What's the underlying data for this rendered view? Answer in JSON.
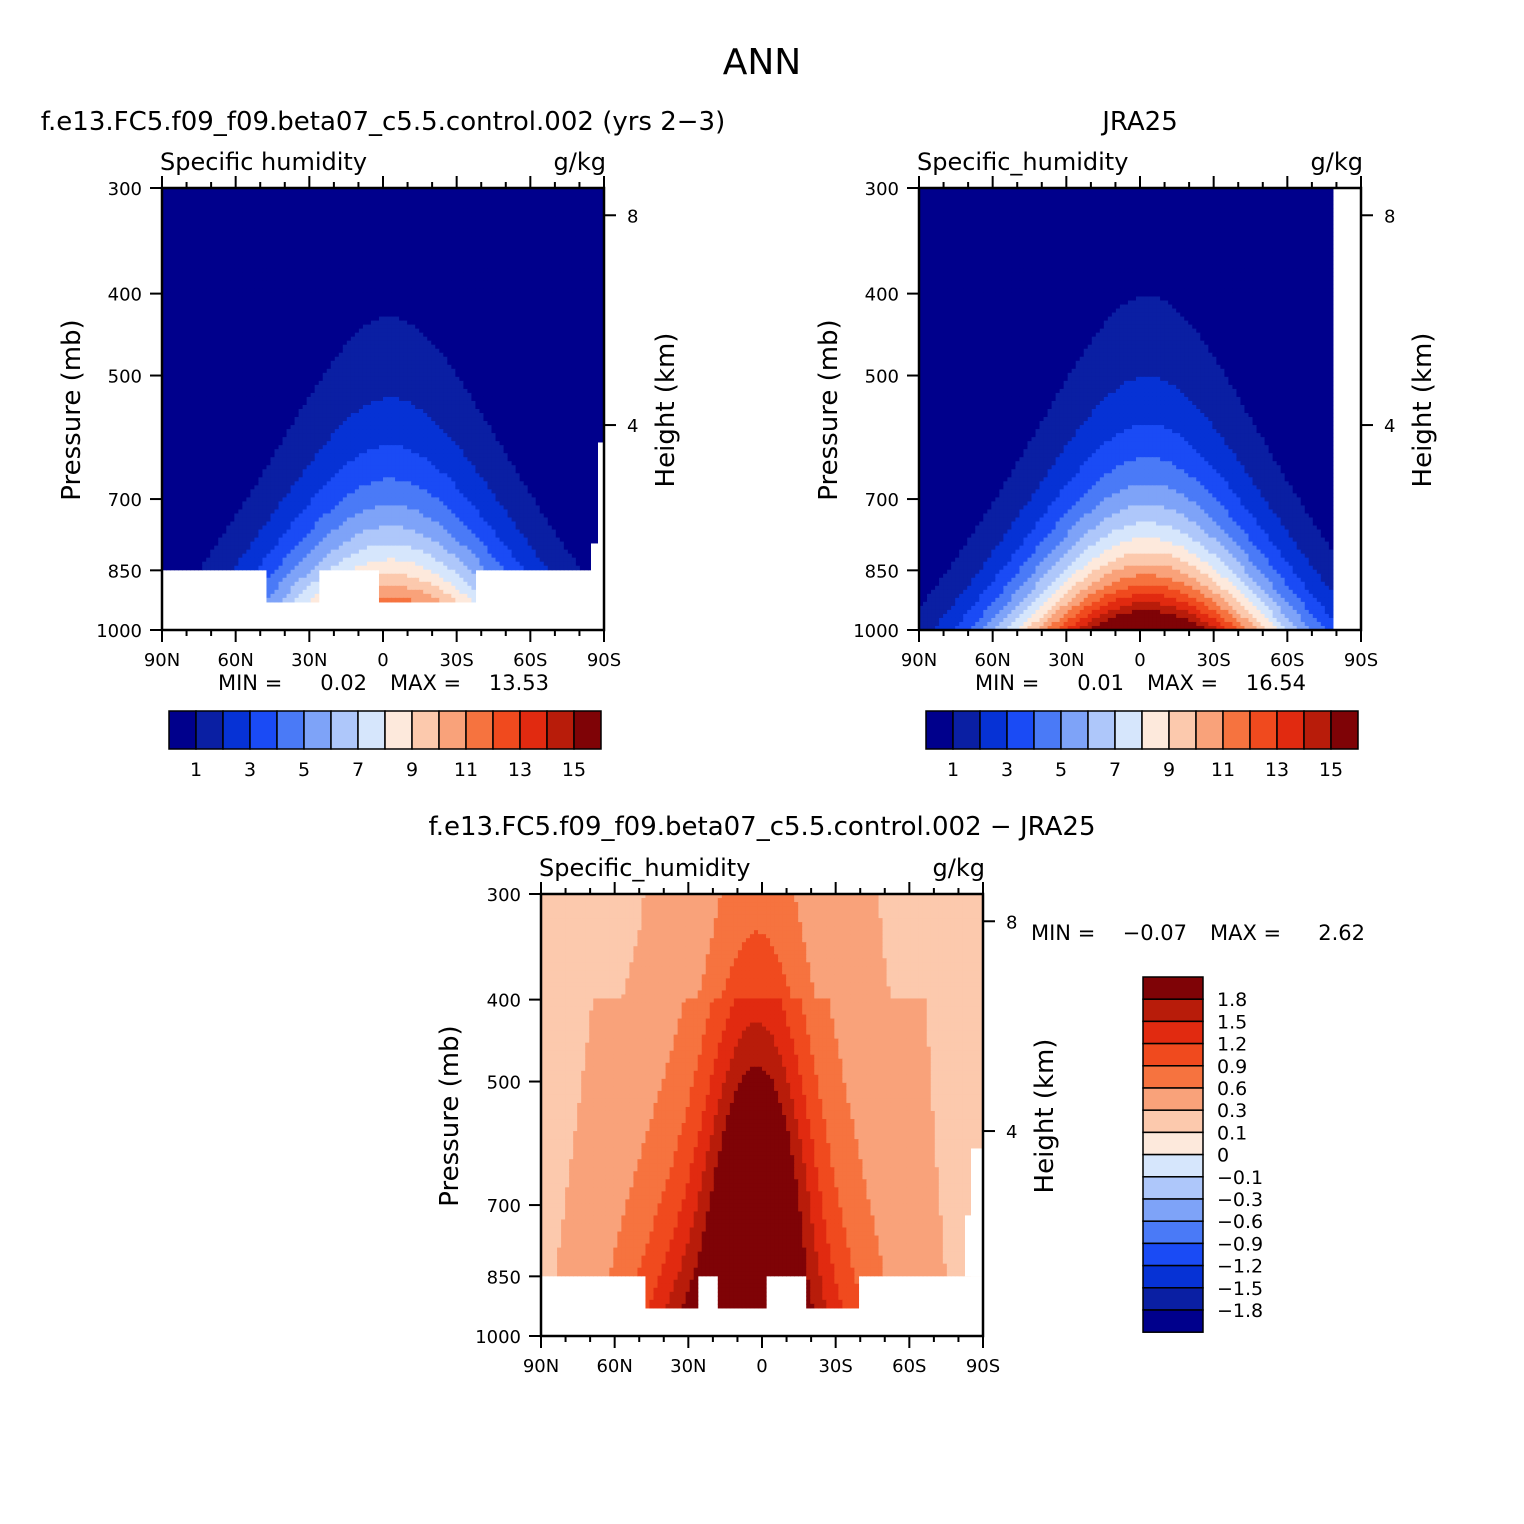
{
  "figure": {
    "title": "ANN"
  },
  "colors": {
    "abs_palette": [
      "#00008c",
      "#0a1fa3",
      "#0632d5",
      "#1a4bf5",
      "#4a7af7",
      "#7ea3f8",
      "#aec7fa",
      "#d6e6fc",
      "#fde9dc",
      "#fcc9ad",
      "#f9a27a",
      "#f6733f",
      "#f04a1e",
      "#e12a10",
      "#b81c0a",
      "#7f0306"
    ],
    "diff_palette": [
      "#00008c",
      "#0a1fa3",
      "#0632d5",
      "#1a4bf5",
      "#4a7af7",
      "#7ea3f8",
      "#aec7fa",
      "#d6e6fc",
      "#fde9dc",
      "#fcc9ad",
      "#f9a27a",
      "#f6733f",
      "#f04a1e",
      "#e12a10",
      "#b81c0a",
      "#7f0306"
    ]
  },
  "chart_data": [
    {
      "id": "model",
      "type": "contour",
      "title": "f.e13.FC5.f09_f09.beta07_c5.5.control.002 (yrs 2−3)",
      "variable": "Specific humidity",
      "units": "g/kg",
      "ylabel": "Pressure (mb)",
      "ylabel_right": "Height (km)",
      "x_ticks": [
        "90N",
        "60N",
        "30N",
        "0",
        "30S",
        "60S",
        "90S"
      ],
      "y_ticks": [
        "300",
        "400",
        "500",
        "700",
        "850",
        "1000"
      ],
      "y_ticks_right": [
        "8",
        "4"
      ],
      "min_label": "MIN =",
      "min_value": "0.02",
      "max_label": "MAX =",
      "max_value": "13.53",
      "colorbar_labels": [
        "1",
        "3",
        "5",
        "7",
        "9",
        "11",
        "13",
        "15"
      ],
      "peak_value": 13.53,
      "max_pressure_mb": 850,
      "surface_block_mb": 925
    },
    {
      "id": "obs",
      "type": "contour",
      "title": "JRA25",
      "variable": "Specific_humidity",
      "units": "g/kg",
      "ylabel": "Pressure (mb)",
      "ylabel_right": "Height (km)",
      "x_ticks": [
        "90N",
        "60N",
        "30N",
        "0",
        "30S",
        "60S",
        "90S"
      ],
      "y_ticks": [
        "300",
        "400",
        "500",
        "700",
        "850",
        "1000"
      ],
      "y_ticks_right": [
        "8",
        "4"
      ],
      "min_label": "MIN =",
      "min_value": "0.01",
      "max_label": "MAX =",
      "max_value": "16.54",
      "colorbar_labels": [
        "1",
        "3",
        "5",
        "7",
        "9",
        "11",
        "13",
        "15"
      ],
      "peak_value": 16.54,
      "max_pressure_mb": 1000
    },
    {
      "id": "diff",
      "type": "contour",
      "title": "f.e13.FC5.f09_f09.beta07_c5.5.control.002 − JRA25",
      "variable": "Specific_humidity",
      "units": "g/kg",
      "ylabel": "Pressure (mb)",
      "ylabel_right": "Height (km)",
      "x_ticks": [
        "90N",
        "60N",
        "30N",
        "0",
        "30S",
        "60S",
        "90S"
      ],
      "y_ticks": [
        "300",
        "400",
        "500",
        "700",
        "850",
        "1000"
      ],
      "y_ticks_right": [
        "8",
        "4"
      ],
      "min_label": "MIN =",
      "min_value": "−0.07",
      "max_label": "MAX =",
      "max_value": "2.62",
      "colorbar_labels": [
        "1.8",
        "1.5",
        "1.2",
        "0.9",
        "0.6",
        "0.3",
        "0.1",
        "0",
        "−0.1",
        "−0.3",
        "−0.6",
        "−0.9",
        "−1.2",
        "−1.5",
        "−1.8"
      ]
    }
  ]
}
